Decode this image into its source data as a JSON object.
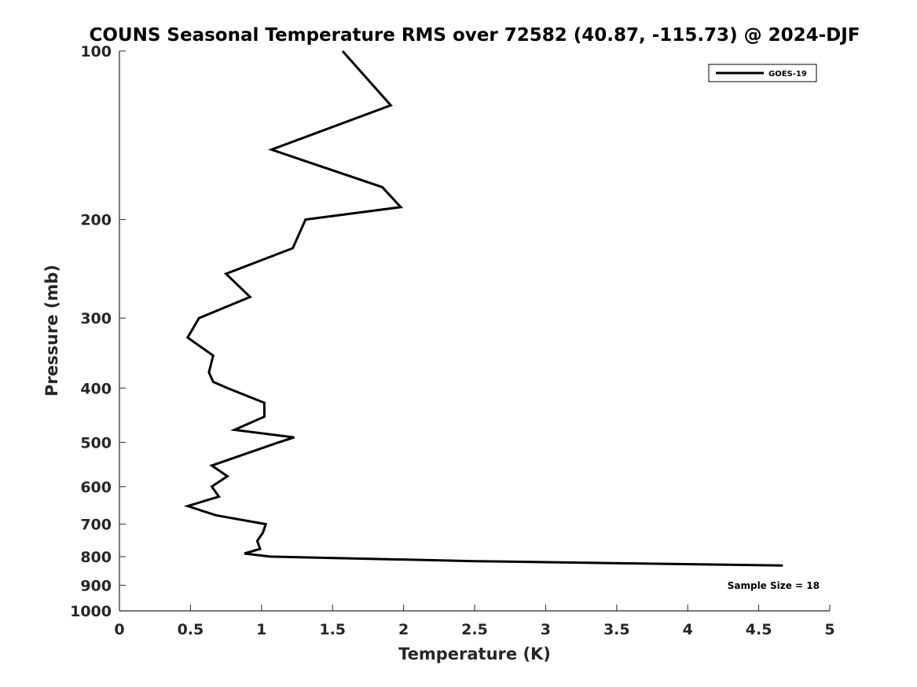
{
  "chart_data": {
    "type": "line",
    "title": "COUNS Seasonal Temperature RMS over 72582 (40.87, -115.73) @ 2024-DJF",
    "xlabel": "Temperature (K)",
    "ylabel": "Pressure (mb)",
    "xlim": [
      0,
      5
    ],
    "ylim": [
      100,
      1000
    ],
    "y_scale": "log",
    "y_inverted": true,
    "x_ticks": [
      0,
      0.5,
      1,
      1.5,
      2,
      2.5,
      3,
      3.5,
      4,
      4.5,
      5
    ],
    "x_tick_labels": [
      "0",
      "0.5",
      "1",
      "1.5",
      "2",
      "2.5",
      "3",
      "3.5",
      "4",
      "4.5",
      "5"
    ],
    "y_ticks": [
      100,
      200,
      300,
      400,
      500,
      600,
      700,
      800,
      900,
      1000
    ],
    "y_tick_labels": [
      "100",
      "200",
      "300",
      "400",
      "500",
      "600",
      "700",
      "800",
      "900",
      "1000"
    ],
    "grid": false,
    "legend_position": "top-right",
    "series": [
      {
        "name": "GOES-19",
        "color": "#000000",
        "points": [
          {
            "x": 1.57,
            "p": 100
          },
          {
            "x": 1.91,
            "p": 125
          },
          {
            "x": 1.07,
            "p": 150
          },
          {
            "x": 1.85,
            "p": 175
          },
          {
            "x": 1.98,
            "p": 190
          },
          {
            "x": 1.31,
            "p": 200
          },
          {
            "x": 1.22,
            "p": 225
          },
          {
            "x": 0.75,
            "p": 250
          },
          {
            "x": 0.92,
            "p": 275
          },
          {
            "x": 0.56,
            "p": 300
          },
          {
            "x": 0.48,
            "p": 325
          },
          {
            "x": 0.66,
            "p": 350
          },
          {
            "x": 0.63,
            "p": 375
          },
          {
            "x": 0.66,
            "p": 390
          },
          {
            "x": 0.76,
            "p": 400
          },
          {
            "x": 1.02,
            "p": 425
          },
          {
            "x": 1.02,
            "p": 450
          },
          {
            "x": 0.81,
            "p": 475
          },
          {
            "x": 1.23,
            "p": 490
          },
          {
            "x": 1.12,
            "p": 500
          },
          {
            "x": 0.65,
            "p": 550
          },
          {
            "x": 0.76,
            "p": 575
          },
          {
            "x": 0.65,
            "p": 600
          },
          {
            "x": 0.7,
            "p": 625
          },
          {
            "x": 0.48,
            "p": 650
          },
          {
            "x": 0.68,
            "p": 675
          },
          {
            "x": 1.03,
            "p": 700
          },
          {
            "x": 1.01,
            "p": 725
          },
          {
            "x": 0.97,
            "p": 750
          },
          {
            "x": 0.99,
            "p": 775
          },
          {
            "x": 0.88,
            "p": 790
          },
          {
            "x": 1.06,
            "p": 800
          },
          {
            "x": 2.5,
            "p": 815
          },
          {
            "x": 4.67,
            "p": 830
          }
        ]
      }
    ],
    "annotations": [
      {
        "text": "Sample Size = 18",
        "position": "bottom-right"
      }
    ]
  }
}
